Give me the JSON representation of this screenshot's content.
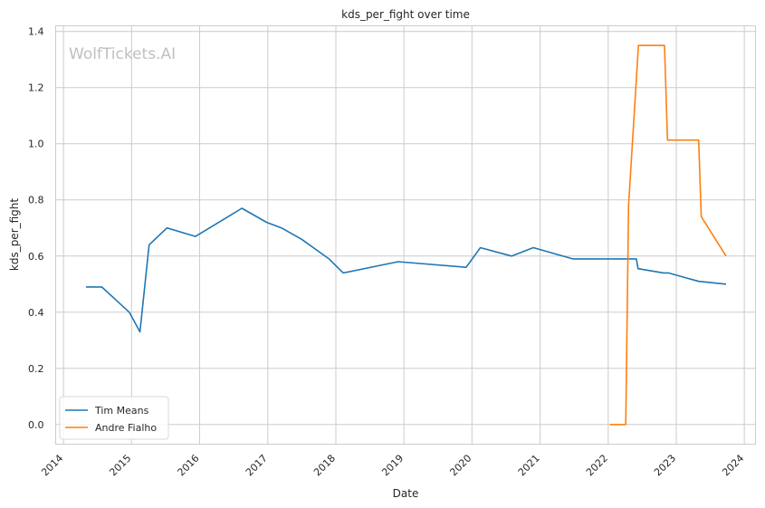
{
  "chart_data": {
    "type": "line",
    "title": "kds_per_fight over time",
    "xlabel": "Date",
    "ylabel": "kds_per_fight",
    "watermark": "WolfTickets.AI",
    "xlim": [
      "2013-11-20",
      "2024-03-01"
    ],
    "ylim": [
      -0.07,
      1.42
    ],
    "x_ticks": [
      "2014",
      "2015",
      "2016",
      "2017",
      "2018",
      "2019",
      "2020",
      "2021",
      "2022",
      "2023",
      "2024"
    ],
    "y_ticks": [
      "0.0",
      "0.2",
      "0.4",
      "0.6",
      "0.8",
      "1.0",
      "1.2",
      "1.4"
    ],
    "grid": true,
    "legend_position": "lower-left",
    "series": [
      {
        "name": "Tim Means",
        "color": "#1f77b4",
        "points": [
          [
            "2014-05-01",
            0.49
          ],
          [
            "2014-07-25",
            0.49
          ],
          [
            "2014-12-20",
            0.4
          ],
          [
            "2015-02-15",
            0.33
          ],
          [
            "2015-04-05",
            0.64
          ],
          [
            "2015-07-10",
            0.7
          ],
          [
            "2015-12-10",
            0.67
          ],
          [
            "2016-08-15",
            0.77
          ],
          [
            "2016-12-25",
            0.72
          ],
          [
            "2017-03-15",
            0.7
          ],
          [
            "2017-07-01",
            0.66
          ],
          [
            "2017-11-25",
            0.59
          ],
          [
            "2018-02-10",
            0.54
          ],
          [
            "2018-12-01",
            0.58
          ],
          [
            "2019-12-01",
            0.56
          ],
          [
            "2020-02-15",
            0.63
          ],
          [
            "2020-08-01",
            0.6
          ],
          [
            "2020-11-25",
            0.63
          ],
          [
            "2021-06-25",
            0.59
          ],
          [
            "2022-06-01",
            0.59
          ],
          [
            "2022-06-10",
            0.555
          ],
          [
            "2022-10-25",
            0.54
          ],
          [
            "2022-11-20",
            0.54
          ],
          [
            "2023-05-01",
            0.51
          ],
          [
            "2023-09-25",
            0.5
          ]
        ]
      },
      {
        "name": "Andre Fialho",
        "color": "#ff7f0e",
        "points": [
          [
            "2022-01-10",
            0.0
          ],
          [
            "2022-04-05",
            0.0
          ],
          [
            "2022-04-20",
            0.78
          ],
          [
            "2022-06-12",
            1.35
          ],
          [
            "2022-10-30",
            1.35
          ],
          [
            "2022-11-15",
            1.013
          ],
          [
            "2023-05-01",
            1.013
          ],
          [
            "2023-05-15",
            0.74
          ],
          [
            "2023-09-25",
            0.6
          ]
        ]
      }
    ]
  }
}
